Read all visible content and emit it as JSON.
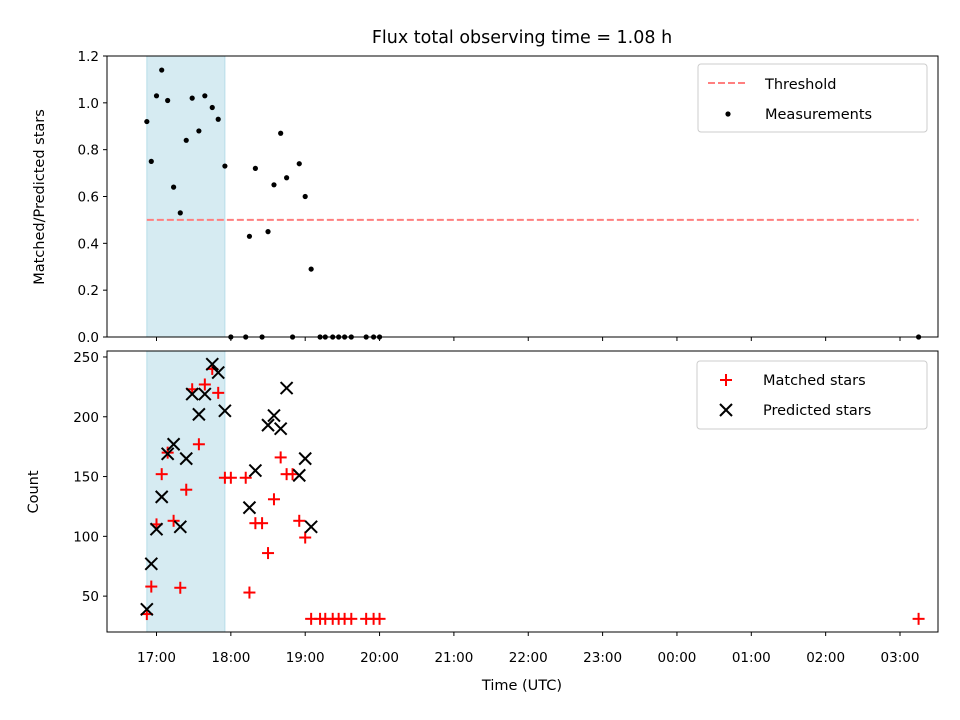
{
  "chart_data": [
    {
      "type": "scatter",
      "title": "Flux total observing time = 1.08 h",
      "ylabel": "Matched/Predicted stars",
      "xlabel": "",
      "ylim": [
        0,
        1.2
      ],
      "yticks": [
        "0.0",
        "0.2",
        "0.4",
        "0.6",
        "0.8",
        "1.0",
        "1.2"
      ],
      "grid": false,
      "legend_position": "top-right",
      "shaded_span": {
        "x0": 16.87,
        "x1": 17.92,
        "color": "#add8e6"
      },
      "threshold": {
        "name": "Threshold",
        "y": 0.5,
        "x0": 16.87,
        "x1": 27.25,
        "color": "#ff7f7f"
      },
      "series": [
        {
          "name": "Measurements",
          "marker": "dot",
          "color": "#000000",
          "points": [
            [
              16.87,
              0.92
            ],
            [
              16.93,
              0.75
            ],
            [
              17.0,
              1.03
            ],
            [
              17.07,
              1.14
            ],
            [
              17.15,
              1.01
            ],
            [
              17.23,
              0.64
            ],
            [
              17.32,
              0.53
            ],
            [
              17.4,
              0.84
            ],
            [
              17.48,
              1.02
            ],
            [
              17.57,
              0.88
            ],
            [
              17.65,
              1.03
            ],
            [
              17.75,
              0.98
            ],
            [
              17.83,
              0.93
            ],
            [
              17.92,
              0.73
            ],
            [
              18.0,
              0.0
            ],
            [
              18.2,
              0.0
            ],
            [
              18.25,
              0.43
            ],
            [
              18.33,
              0.72
            ],
            [
              18.42,
              0.0
            ],
            [
              18.5,
              0.45
            ],
            [
              18.58,
              0.65
            ],
            [
              18.67,
              0.87
            ],
            [
              18.75,
              0.68
            ],
            [
              18.83,
              0.0
            ],
            [
              18.92,
              0.74
            ],
            [
              19.0,
              0.6
            ],
            [
              19.08,
              0.29
            ],
            [
              19.2,
              0.0
            ],
            [
              19.27,
              0.0
            ],
            [
              19.37,
              0.0
            ],
            [
              19.45,
              0.0
            ],
            [
              19.53,
              0.0
            ],
            [
              19.62,
              0.0
            ],
            [
              19.82,
              0.0
            ],
            [
              19.92,
              0.0
            ],
            [
              20.0,
              0.0
            ],
            [
              27.25,
              0.0
            ]
          ]
        }
      ]
    },
    {
      "type": "scatter",
      "title": "",
      "xlabel": "Time (UTC)",
      "ylabel": "Count",
      "ylim": [
        20,
        255
      ],
      "yticks": [
        "50",
        "100",
        "150",
        "200",
        "250"
      ],
      "xticks": [
        "17:00",
        "18:00",
        "19:00",
        "20:00",
        "21:00",
        "22:00",
        "23:00",
        "00:00",
        "01:00",
        "02:00",
        "03:00"
      ],
      "grid": false,
      "legend_position": "top-right",
      "shaded_span": {
        "x0": 16.87,
        "x1": 17.92,
        "color": "#add8e6"
      },
      "series": [
        {
          "name": "Matched stars",
          "marker": "plus",
          "color": "#ff0000",
          "points": [
            [
              16.87,
              35
            ],
            [
              16.93,
              58
            ],
            [
              17.0,
              110
            ],
            [
              17.07,
              152
            ],
            [
              17.15,
              170
            ],
            [
              17.23,
              113
            ],
            [
              17.32,
              57
            ],
            [
              17.4,
              139
            ],
            [
              17.48,
              223
            ],
            [
              17.57,
              177
            ],
            [
              17.65,
              227
            ],
            [
              17.75,
              240
            ],
            [
              17.83,
              220
            ],
            [
              17.92,
              149
            ],
            [
              18.0,
              149
            ],
            [
              18.2,
              149
            ],
            [
              18.25,
              53
            ],
            [
              18.33,
              111
            ],
            [
              18.42,
              111
            ],
            [
              18.5,
              86
            ],
            [
              18.58,
              131
            ],
            [
              18.67,
              166
            ],
            [
              18.75,
              152
            ],
            [
              18.83,
              152
            ],
            [
              18.92,
              113
            ],
            [
              19.0,
              99
            ],
            [
              19.08,
              31
            ],
            [
              19.2,
              31
            ],
            [
              19.27,
              31
            ],
            [
              19.37,
              31
            ],
            [
              19.45,
              31
            ],
            [
              19.53,
              31
            ],
            [
              19.62,
              31
            ],
            [
              19.82,
              31
            ],
            [
              19.92,
              31
            ],
            [
              20.0,
              31
            ],
            [
              27.25,
              31
            ]
          ]
        },
        {
          "name": "Predicted stars",
          "marker": "x",
          "color": "#000000",
          "points": [
            [
              16.87,
              39
            ],
            [
              16.93,
              77
            ],
            [
              17.0,
              106
            ],
            [
              17.07,
              133
            ],
            [
              17.15,
              169
            ],
            [
              17.23,
              177
            ],
            [
              17.32,
              108
            ],
            [
              17.4,
              165
            ],
            [
              17.48,
              219
            ],
            [
              17.57,
              202
            ],
            [
              17.65,
              219
            ],
            [
              17.75,
              244
            ],
            [
              17.83,
              237
            ],
            [
              17.92,
              205
            ],
            [
              18.25,
              124
            ],
            [
              18.33,
              155
            ],
            [
              18.5,
              193
            ],
            [
              18.58,
              201
            ],
            [
              18.67,
              190
            ],
            [
              18.75,
              224
            ],
            [
              18.92,
              151
            ],
            [
              19.0,
              165
            ],
            [
              19.08,
              108
            ]
          ]
        }
      ]
    }
  ]
}
